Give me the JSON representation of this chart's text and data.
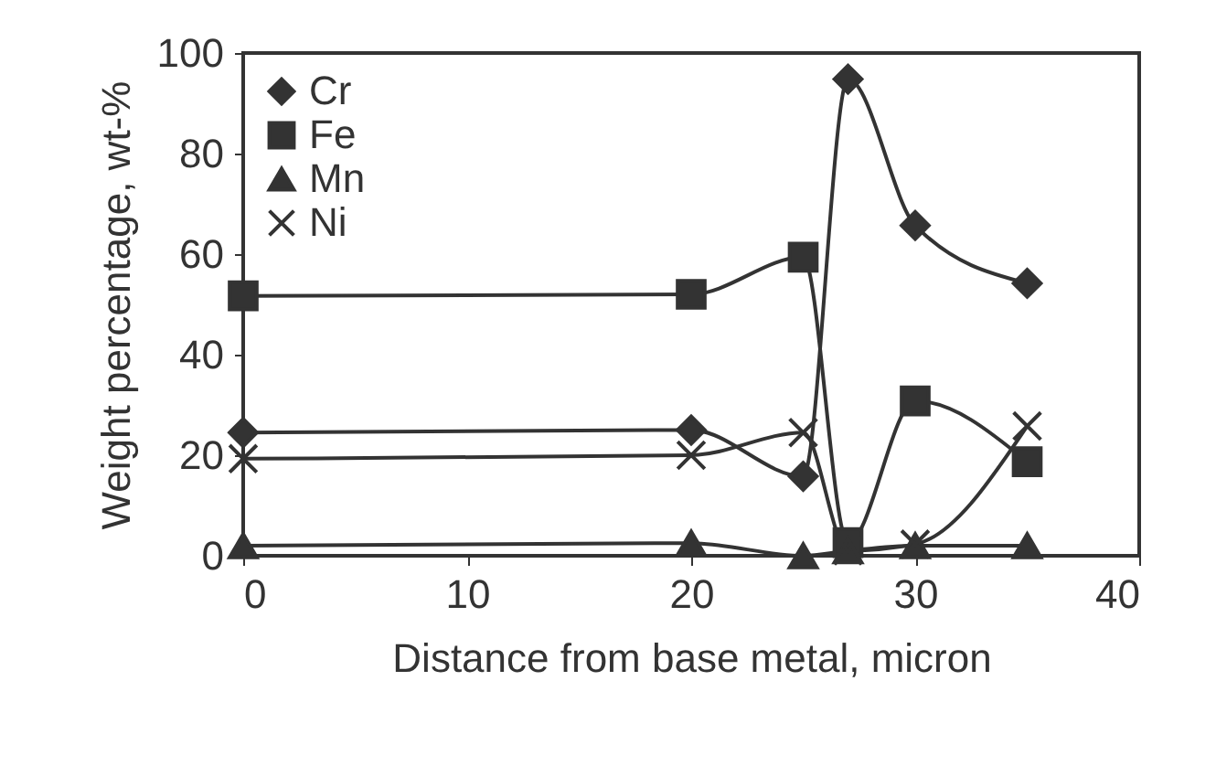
{
  "chart_data": {
    "type": "line",
    "xlabel": "Distance from base metal, micron",
    "ylabel": "Weight percentage, wt-%",
    "x": [
      0,
      20,
      25,
      27,
      30,
      35
    ],
    "xlim": [
      0,
      40
    ],
    "xticks": [
      0,
      10,
      20,
      30,
      40
    ],
    "ylim": [
      0,
      100
    ],
    "yticks": [
      0,
      20,
      40,
      60,
      80,
      100
    ],
    "grid": false,
    "legend": "top left",
    "line_style": "solid",
    "series": [
      {
        "name": "Cr",
        "color": "#333333",
        "marker": "diamond",
        "values": [
          24.5,
          25,
          15.8,
          94.8,
          65.7,
          54.2
        ]
      },
      {
        "name": "Fe",
        "color": "#333333",
        "marker": "square",
        "values": [
          51.7,
          52,
          59.4,
          2.6,
          30.8,
          18.7
        ]
      },
      {
        "name": "Mn",
        "color": "#333333",
        "marker": "triangle",
        "values": [
          2,
          2.5,
          0,
          1,
          2,
          2
        ]
      },
      {
        "name": "Ni",
        "color": "#333333",
        "marker": "cross",
        "values": [
          19.3,
          20,
          24.5,
          1,
          2.3,
          25.8
        ]
      }
    ]
  }
}
